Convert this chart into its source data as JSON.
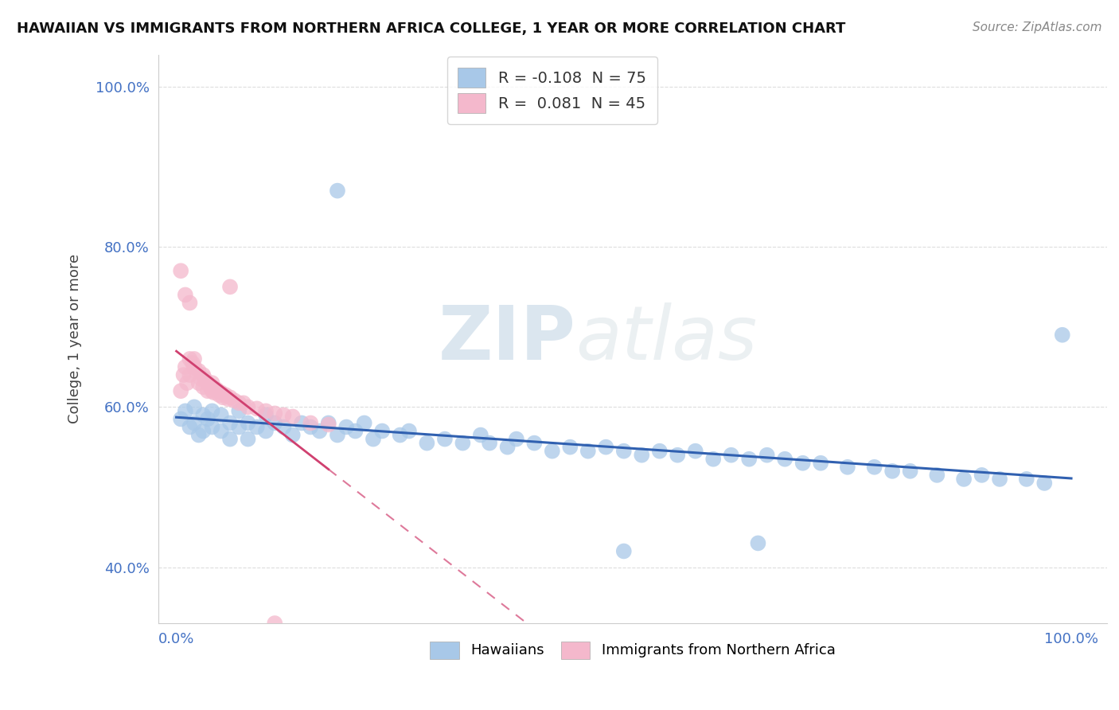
{
  "title": "HAWAIIAN VS IMMIGRANTS FROM NORTHERN AFRICA COLLEGE, 1 YEAR OR MORE CORRELATION CHART",
  "source": "Source: ZipAtlas.com",
  "ylabel": "College, 1 year or more",
  "hawaiians_R": "-0.108",
  "hawaiians_N": "75",
  "northern_africa_R": "0.081",
  "northern_africa_N": "45",
  "hawaiians_color": "#a8c8e8",
  "northern_africa_color": "#f4b8cc",
  "hawaiians_line_color": "#3060b0",
  "northern_africa_line_color": "#d04070",
  "background_color": "#ffffff",
  "grid_color": "#dddddd",
  "xticks": [
    0.0,
    1.0
  ],
  "xtick_labels": [
    "0.0%",
    "100.0%"
  ],
  "yticks": [
    0.4,
    0.6,
    0.8,
    1.0
  ],
  "ytick_labels": [
    "40.0%",
    "60.0%",
    "80.0%",
    "100.0%"
  ],
  "legend1_label1": "R = -0.108  N = 75",
  "legend1_label2": "R =  0.081  N = 45",
  "legend2_label1": "Hawaiians",
  "legend2_label2": "Immigrants from Northern Africa",
  "haw_x": [
    0.005,
    0.01,
    0.015,
    0.02,
    0.02,
    0.025,
    0.03,
    0.03,
    0.035,
    0.04,
    0.04,
    0.05,
    0.05,
    0.06,
    0.06,
    0.07,
    0.07,
    0.08,
    0.08,
    0.09,
    0.1,
    0.1,
    0.11,
    0.12,
    0.13,
    0.14,
    0.15,
    0.16,
    0.17,
    0.18,
    0.19,
    0.2,
    0.21,
    0.22,
    0.23,
    0.25,
    0.26,
    0.28,
    0.3,
    0.32,
    0.34,
    0.35,
    0.37,
    0.38,
    0.4,
    0.42,
    0.44,
    0.46,
    0.48,
    0.5,
    0.52,
    0.54,
    0.56,
    0.58,
    0.6,
    0.62,
    0.64,
    0.66,
    0.68,
    0.7,
    0.72,
    0.75,
    0.78,
    0.8,
    0.82,
    0.85,
    0.88,
    0.9,
    0.92,
    0.95,
    0.97,
    0.5,
    0.65,
    0.99,
    0.18
  ],
  "haw_y": [
    0.585,
    0.595,
    0.575,
    0.6,
    0.58,
    0.565,
    0.59,
    0.57,
    0.585,
    0.595,
    0.575,
    0.57,
    0.59,
    0.56,
    0.58,
    0.575,
    0.595,
    0.56,
    0.58,
    0.575,
    0.57,
    0.59,
    0.58,
    0.575,
    0.565,
    0.58,
    0.575,
    0.57,
    0.58,
    0.565,
    0.575,
    0.57,
    0.58,
    0.56,
    0.57,
    0.565,
    0.57,
    0.555,
    0.56,
    0.555,
    0.565,
    0.555,
    0.55,
    0.56,
    0.555,
    0.545,
    0.55,
    0.545,
    0.55,
    0.545,
    0.54,
    0.545,
    0.54,
    0.545,
    0.535,
    0.54,
    0.535,
    0.54,
    0.535,
    0.53,
    0.53,
    0.525,
    0.525,
    0.52,
    0.52,
    0.515,
    0.51,
    0.515,
    0.51,
    0.51,
    0.505,
    0.42,
    0.43,
    0.69,
    0.87
  ],
  "na_x": [
    0.005,
    0.008,
    0.01,
    0.012,
    0.015,
    0.015,
    0.018,
    0.02,
    0.02,
    0.022,
    0.025,
    0.025,
    0.028,
    0.03,
    0.03,
    0.032,
    0.035,
    0.035,
    0.038,
    0.04,
    0.04,
    0.042,
    0.045,
    0.048,
    0.05,
    0.052,
    0.055,
    0.058,
    0.06,
    0.065,
    0.07,
    0.075,
    0.08,
    0.09,
    0.1,
    0.11,
    0.12,
    0.13,
    0.15,
    0.17,
    0.005,
    0.01,
    0.015,
    0.11,
    0.06
  ],
  "na_y": [
    0.62,
    0.64,
    0.65,
    0.63,
    0.66,
    0.64,
    0.655,
    0.65,
    0.66,
    0.645,
    0.63,
    0.645,
    0.635,
    0.625,
    0.64,
    0.635,
    0.63,
    0.62,
    0.625,
    0.62,
    0.63,
    0.618,
    0.622,
    0.615,
    0.618,
    0.612,
    0.615,
    0.61,
    0.612,
    0.608,
    0.605,
    0.605,
    0.6,
    0.598,
    0.595,
    0.592,
    0.59,
    0.588,
    0.58,
    0.578,
    0.77,
    0.74,
    0.73,
    0.33,
    0.75
  ]
}
